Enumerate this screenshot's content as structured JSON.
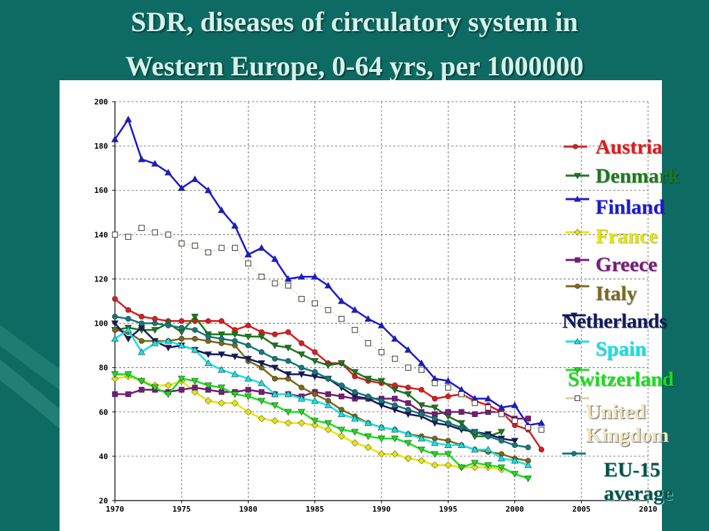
{
  "title": {
    "line1": "SDR, diseases of circulatory system in",
    "line2": "Western Europe, 0-64 yrs, per 1000000"
  },
  "chart_data": {
    "type": "line",
    "x_ticks": [
      "1970",
      "1975",
      "1980",
      "1985",
      "1990",
      "1995",
      "2000",
      "2005",
      "2010"
    ],
    "y_ticks": [
      "20",
      "40",
      "60",
      "80",
      "100",
      "120",
      "140",
      "160",
      "180",
      "200"
    ],
    "xlim": [
      1970,
      2010
    ],
    "ylim": [
      20,
      200
    ],
    "grid": true,
    "legend_position": "right",
    "series": [
      {
        "name": "Austria",
        "color": "#e01b1b",
        "marker": "circle",
        "legend_text": [
          "Austria"
        ],
        "x": [
          1970,
          1971,
          1972,
          1973,
          1974,
          1975,
          1976,
          1977,
          1978,
          1979,
          1980,
          1981,
          1982,
          1983,
          1984,
          1985,
          1986,
          1987,
          1988,
          1989,
          1990,
          1991,
          1992,
          1993,
          1994,
          1995,
          1996,
          1997,
          1998,
          1999,
          2000,
          2001,
          2002
        ],
        "y": [
          111,
          106,
          103,
          102,
          101,
          101,
          101,
          101,
          101,
          97,
          99,
          96,
          95,
          96,
          91,
          87,
          82,
          82,
          76,
          74,
          73,
          72,
          71,
          70,
          66,
          67,
          68,
          65,
          63,
          60,
          54,
          52,
          43
        ]
      },
      {
        "name": "Denmark",
        "color": "#1a7a1a",
        "marker": "triangle-down",
        "legend_text": [
          "Denmark"
        ],
        "x": [
          1970,
          1971,
          1972,
          1973,
          1974,
          1975,
          1976,
          1977,
          1978,
          1979,
          1980,
          1981,
          1982,
          1983,
          1984,
          1985,
          1986,
          1987,
          1988,
          1989,
          1990,
          1991,
          1992,
          1993,
          1994,
          1995,
          1996,
          1997,
          1998,
          1999
        ],
        "y": [
          97,
          98,
          97,
          97,
          100,
          96,
          103,
          95,
          95,
          95,
          94,
          94,
          90,
          89,
          86,
          83,
          81,
          82,
          78,
          75,
          74,
          70,
          68,
          63,
          62,
          58,
          55,
          49,
          49,
          51
        ]
      },
      {
        "name": "Finland",
        "color": "#1a1ad6",
        "marker": "triangle-up",
        "legend_text": [
          "Finland"
        ],
        "x": [
          1970,
          1971,
          1972,
          1973,
          1974,
          1975,
          1976,
          1977,
          1978,
          1979,
          1980,
          1981,
          1982,
          1983,
          1984,
          1985,
          1986,
          1987,
          1988,
          1989,
          1990,
          1991,
          1992,
          1993,
          1994,
          1995,
          1996,
          1997,
          1998,
          1999,
          2000,
          2001,
          2002
        ],
        "y": [
          183,
          192,
          174,
          172,
          168,
          161,
          165,
          160,
          151,
          144,
          131,
          134,
          129,
          120,
          121,
          121,
          117,
          110,
          106,
          102,
          99,
          93,
          88,
          82,
          75,
          74,
          70,
          66,
          66,
          62,
          63,
          54,
          55
        ]
      },
      {
        "name": "France",
        "color": "#e6e600",
        "marker": "diamond",
        "legend_text": [
          "France"
        ],
        "x": [
          1970,
          1971,
          1972,
          1973,
          1974,
          1975,
          1976,
          1977,
          1978,
          1979,
          1980,
          1981,
          1982,
          1983,
          1984,
          1985,
          1986,
          1987,
          1988,
          1989,
          1990,
          1991,
          1992,
          1993,
          1994,
          1995,
          1996,
          1997,
          1998,
          1999
        ],
        "y": [
          75,
          76,
          74,
          72,
          72,
          74,
          69,
          65,
          64,
          64,
          60,
          57,
          56,
          55,
          55,
          54,
          52,
          49,
          46,
          44,
          41,
          41,
          39,
          38,
          36,
          36,
          35,
          35,
          35,
          34
        ]
      },
      {
        "name": "Greece",
        "color": "#7a1a7a",
        "marker": "square",
        "legend_text": [
          "Greece"
        ],
        "x": [
          1970,
          1971,
          1972,
          1973,
          1974,
          1975,
          1976,
          1977,
          1978,
          1979,
          1980,
          1981,
          1982,
          1983,
          1984,
          1985,
          1986,
          1987,
          1988,
          1989,
          1990,
          1991,
          1992,
          1993,
          1994,
          1995,
          1996,
          1997,
          1998,
          1999,
          2000,
          2001
        ],
        "y": [
          68,
          68,
          70,
          70,
          69,
          70,
          71,
          70,
          69,
          69,
          70,
          69,
          68,
          68,
          67,
          69,
          68,
          67,
          66,
          66,
          66,
          66,
          64,
          60,
          59,
          60,
          60,
          59,
          60,
          60,
          57,
          57
        ]
      },
      {
        "name": "Italy",
        "color": "#7a6a1a",
        "marker": "circle",
        "legend_text": [
          "Italy"
        ],
        "x": [
          1970,
          1971,
          1972,
          1973,
          1974,
          1975,
          1976,
          1977,
          1978,
          1979,
          1980,
          1981,
          1982,
          1983,
          1984,
          1985,
          1986,
          1987,
          1988,
          1989,
          1990,
          1991,
          1992,
          1993,
          1994,
          1995,
          1996,
          1997,
          1998,
          1999,
          2000,
          2001
        ],
        "y": [
          97,
          96,
          92,
          92,
          92,
          93,
          93,
          92,
          91,
          90,
          83,
          80,
          75,
          75,
          71,
          68,
          65,
          61,
          58,
          55,
          53,
          52,
          50,
          49,
          48,
          47,
          45,
          43,
          42,
          41,
          39,
          38
        ]
      },
      {
        "name": "Netherlands",
        "color": "#121a5e",
        "marker": "triangle-down",
        "legend_text": [
          "Netherlands"
        ],
        "x": [
          1970,
          1971,
          1972,
          1973,
          1974,
          1975,
          1976,
          1977,
          1978,
          1979,
          1980,
          1981,
          1982,
          1983,
          1984,
          1985,
          1986,
          1987,
          1988,
          1989,
          1990,
          1991,
          1992,
          1993,
          1994,
          1995,
          1996,
          1997,
          1998,
          1999,
          2000
        ],
        "y": [
          100,
          93,
          98,
          92,
          89,
          90,
          88,
          86,
          86,
          85,
          84,
          82,
          80,
          77,
          77,
          76,
          75,
          71,
          67,
          66,
          63,
          61,
          59,
          58,
          55,
          54,
          52,
          51,
          50,
          48,
          47
        ]
      },
      {
        "name": "Spain",
        "color": "#18e0e0",
        "marker": "triangle-up",
        "legend_text": [
          "Spain"
        ],
        "x": [
          1970,
          1971,
          1972,
          1973,
          1974,
          1975,
          1976,
          1977,
          1978,
          1979,
          1980,
          1981,
          1982,
          1983,
          1984,
          1985,
          1986,
          1987,
          1988,
          1989,
          1990,
          1991,
          1992,
          1993,
          1994,
          1995,
          1996,
          1997,
          1998,
          1999,
          2000,
          2001
        ],
        "y": [
          93,
          97,
          87,
          91,
          92,
          90,
          88,
          82,
          79,
          77,
          75,
          73,
          68,
          68,
          66,
          65,
          63,
          59,
          57,
          55,
          53,
          52,
          50,
          48,
          46,
          45,
          45,
          43,
          43,
          39,
          38,
          36
        ]
      },
      {
        "name": "Switzerland",
        "color": "#18e018",
        "marker": "triangle-down",
        "legend_text": [
          "Switzerland"
        ],
        "x": [
          1970,
          1971,
          1972,
          1973,
          1974,
          1975,
          1976,
          1977,
          1978,
          1979,
          1980,
          1981,
          1982,
          1983,
          1984,
          1985,
          1986,
          1987,
          1988,
          1989,
          1990,
          1991,
          1992,
          1993,
          1994,
          1995,
          1996,
          1997,
          1998,
          1999,
          2000,
          2001
        ],
        "y": [
          77,
          77,
          74,
          71,
          68,
          75,
          74,
          72,
          71,
          68,
          67,
          65,
          63,
          60,
          60,
          56,
          55,
          52,
          51,
          49,
          48,
          48,
          46,
          43,
          41,
          41,
          35,
          37,
          36,
          35,
          32,
          30
        ]
      },
      {
        "name": "United Kingdom",
        "color": "#d9d0a0",
        "marker": "square-open",
        "legend_text": [
          "United",
          "Kingdom"
        ],
        "x": [
          1970,
          1971,
          1972,
          1973,
          1974,
          1975,
          1976,
          1977,
          1978,
          1979,
          1980,
          1981,
          1982,
          1983,
          1984,
          1985,
          1986,
          1987,
          1988,
          1989,
          1990,
          1991,
          1992,
          1993,
          1994,
          1995,
          1996,
          1997,
          1998,
          1999,
          2000,
          2001,
          2002
        ],
        "y": [
          140,
          139,
          143,
          141,
          140,
          136,
          135,
          132,
          134,
          134,
          127,
          121,
          118,
          117,
          111,
          109,
          106,
          102,
          97,
          91,
          87,
          84,
          80,
          79,
          73,
          71,
          68,
          64,
          62,
          59,
          56,
          53,
          52
        ]
      },
      {
        "name": "EU-15 average",
        "color": "#127a7a",
        "marker": "circle",
        "legend_text": [
          "EU-15",
          "average"
        ],
        "x": [
          1970,
          1971,
          1972,
          1973,
          1974,
          1975,
          1976,
          1977,
          1978,
          1979,
          1980,
          1981,
          1982,
          1983,
          1984,
          1985,
          1986,
          1987,
          1988,
          1989,
          1990,
          1991,
          1992,
          1993,
          1994,
          1995,
          1996,
          1997,
          1998,
          1999,
          2000,
          2001
        ],
        "y": [
          103,
          102,
          100,
          100,
          99,
          98,
          97,
          94,
          93,
          92,
          90,
          87,
          84,
          83,
          80,
          78,
          75,
          72,
          69,
          67,
          65,
          63,
          61,
          59,
          57,
          55,
          53,
          51,
          49,
          47,
          45,
          44
        ]
      }
    ]
  }
}
